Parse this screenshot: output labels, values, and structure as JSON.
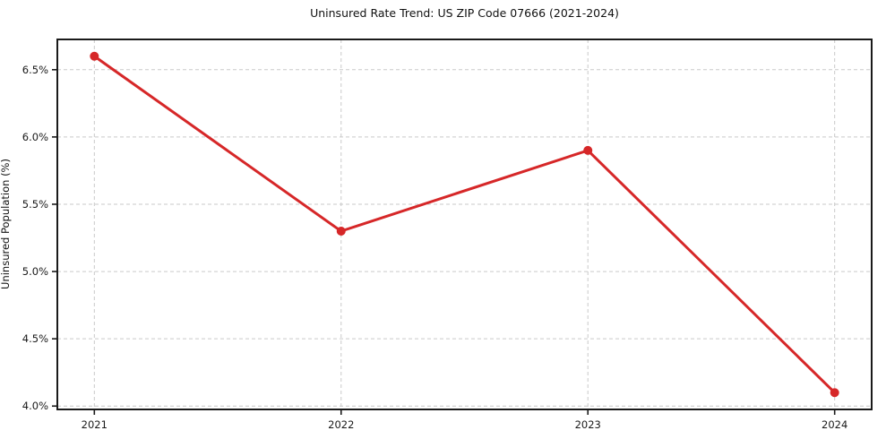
{
  "chart": {
    "title": "Uninsured Rate Trend: US ZIP Code 07666 (2021-2024)",
    "ylabel": "Uninsured Population (%)"
  },
  "chart_data": {
    "type": "line",
    "title": "Uninsured Rate Trend: US ZIP Code 07666 (2021-2024)",
    "xlabel": "",
    "ylabel": "Uninsured Population (%)",
    "x": [
      2021,
      2022,
      2023,
      2024
    ],
    "values": [
      6.6,
      5.3,
      5.9,
      4.1
    ],
    "x_ticks": [
      {
        "value": 2021,
        "label": "2021"
      },
      {
        "value": 2022,
        "label": "2022"
      },
      {
        "value": 2023,
        "label": "2023"
      },
      {
        "value": 2024,
        "label": "2024"
      }
    ],
    "y_ticks": [
      {
        "value": 4.0,
        "label": "4.0%"
      },
      {
        "value": 4.5,
        "label": "4.5%"
      },
      {
        "value": 5.0,
        "label": "5.0%"
      },
      {
        "value": 5.5,
        "label": "5.5%"
      },
      {
        "value": 6.0,
        "label": "6.0%"
      },
      {
        "value": 6.5,
        "label": "6.5%"
      }
    ],
    "xlim": [
      2020.85,
      2024.15
    ],
    "ylim": [
      3.975,
      6.725
    ],
    "grid": true,
    "grid_style": "dashed",
    "legend": "none",
    "colors": {
      "line": "#d62728",
      "marker": "#d62728",
      "grid": "#c9c9c9",
      "spine": "#1a1a1a",
      "tick_text": "#1a1a1a",
      "background": "#ffffff"
    }
  }
}
